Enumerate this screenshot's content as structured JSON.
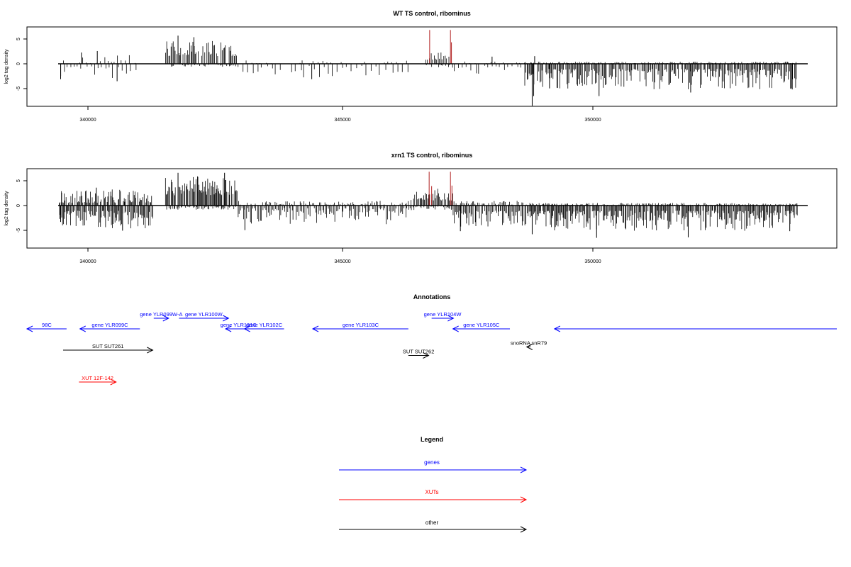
{
  "chart_data": [
    {
      "type": "bar",
      "title": "WT TS control, ribominus",
      "ylabel": "log2 tag density",
      "xlim": [
        338450,
        354800
      ],
      "ylim": [
        -8.3,
        7.2
      ],
      "xticks": [
        340000,
        345000,
        350000
      ],
      "xtick_labels": [
        "340000",
        "345000",
        "350000"
      ],
      "yticks": [
        5,
        0,
        -5
      ],
      "ytick_labels": [
        "5",
        "0",
        "-5"
      ],
      "genome_range": [
        339100,
        354000
      ],
      "highlight_color": "#b22222",
      "highlights": [
        {
          "x": 346580,
          "y": 6.6
        },
        {
          "x": 347000,
          "y": 6.6
        },
        {
          "x": 347020,
          "y": 4.2
        }
      ],
      "peaks": [
        {
          "x": 339130,
          "y": -3.0
        },
        {
          "x": 339550,
          "y": 2.2
        },
        {
          "x": 339870,
          "y": 2.5
        },
        {
          "x": 340270,
          "y": -3.4
        },
        {
          "x": 341500,
          "y": 5.5
        },
        {
          "x": 341820,
          "y": 5.2
        },
        {
          "x": 344200,
          "y": -3.0
        },
        {
          "x": 347840,
          "y": 1.4
        },
        {
          "x": 348700,
          "y": 1.5
        },
        {
          "x": 348650,
          "y": -8.2
        },
        {
          "x": 348680,
          "y": -6.3
        },
        {
          "x": 349000,
          "y": -4.8
        },
        {
          "x": 350000,
          "y": -6.3
        },
        {
          "x": 351850,
          "y": -5.6
        },
        {
          "x": 353900,
          "y": -5.0
        }
      ],
      "segments": [
        {
          "from": 339100,
          "to": 340700,
          "plus": [
            0,
            1.8
          ],
          "minus": [
            0.5,
            2.8
          ],
          "step": 70
        },
        {
          "from": 341250,
          "to": 342700,
          "plus": [
            1.5,
            4.5
          ],
          "minus": [
            0,
            0.6
          ],
          "step": 22
        },
        {
          "from": 342700,
          "to": 346200,
          "plus": [
            0,
            0.7
          ],
          "minus": [
            0.4,
            2.8
          ],
          "step": 95
        },
        {
          "from": 346500,
          "to": 347050,
          "plus": [
            0.8,
            2.2
          ],
          "minus": [
            0,
            0.9
          ],
          "step": 28
        },
        {
          "from": 347050,
          "to": 348500,
          "plus": [
            0,
            0.6
          ],
          "minus": [
            0.3,
            2.0
          ],
          "step": 85
        },
        {
          "from": 348500,
          "to": 354000,
          "plus": [
            0,
            0.4
          ],
          "minus": [
            1.0,
            5.0
          ],
          "step": 20
        }
      ]
    },
    {
      "type": "bar",
      "title": "xrn1 TS control, ribominus",
      "ylabel": "log2 tag density",
      "xlim": [
        338450,
        354800
      ],
      "ylim": [
        -8.3,
        7.2
      ],
      "xticks": [
        340000,
        345000,
        350000
      ],
      "xtick_labels": [
        "340000",
        "345000",
        "350000"
      ],
      "yticks": [
        5,
        0,
        -5
      ],
      "ytick_labels": [
        "5",
        "0",
        "-5"
      ],
      "genome_range": [
        339100,
        354000
      ],
      "highlight_color": "#b22222",
      "highlights": [
        {
          "x": 346570,
          "y": 6.6
        },
        {
          "x": 346620,
          "y": 3.8
        },
        {
          "x": 347000,
          "y": 6.6
        },
        {
          "x": 347030,
          "y": 3.9
        }
      ],
      "peaks": [
        {
          "x": 339130,
          "y": -3.2
        },
        {
          "x": 339150,
          "y": 2.5
        },
        {
          "x": 339850,
          "y": 3.5
        },
        {
          "x": 340380,
          "y": -4.9
        },
        {
          "x": 341500,
          "y": 6.4
        },
        {
          "x": 341900,
          "y": 5.6
        },
        {
          "x": 342440,
          "y": 6.4
        },
        {
          "x": 342850,
          "y": -4.8
        },
        {
          "x": 347200,
          "y": -5.0
        },
        {
          "x": 348650,
          "y": -5.6
        },
        {
          "x": 349950,
          "y": -6.3
        },
        {
          "x": 351800,
          "y": -6.2
        },
        {
          "x": 353850,
          "y": -5.0
        }
      ],
      "segments": [
        {
          "from": 339100,
          "to": 341000,
          "plus": [
            0.5,
            3.2
          ],
          "minus": [
            1.0,
            4.5
          ],
          "step": 17
        },
        {
          "from": 341250,
          "to": 342700,
          "plus": [
            2.0,
            5.8
          ],
          "minus": [
            0,
            0.8
          ],
          "step": 16
        },
        {
          "from": 342700,
          "to": 346200,
          "plus": [
            0,
            0.9
          ],
          "minus": [
            0.5,
            3.8
          ],
          "step": 28
        },
        {
          "from": 346200,
          "to": 347050,
          "plus": [
            1.0,
            3.5
          ],
          "minus": [
            0,
            0.9
          ],
          "step": 20
        },
        {
          "from": 347050,
          "to": 348500,
          "plus": [
            0,
            1.0
          ],
          "minus": [
            1.0,
            4.2
          ],
          "step": 22
        },
        {
          "from": 348500,
          "to": 354000,
          "plus": [
            0,
            0.5
          ],
          "minus": [
            1.0,
            5.0
          ],
          "step": 17
        }
      ]
    }
  ],
  "annotations": {
    "title": "Annotations",
    "xlim": [
      338450,
      354800
    ],
    "colors": {
      "gene": "#0000ff",
      "xut": "#ff0000",
      "other": "#000000"
    },
    "features": [
      {
        "label": "98C",
        "kind": "gene",
        "start": 338450,
        "end": 339250,
        "strand": "-",
        "row": 0
      },
      {
        "label": "gene YLR099C",
        "kind": "gene",
        "start": 339520,
        "end": 340730,
        "strand": "-",
        "row": 0
      },
      {
        "label": "gene YLR099W-A",
        "kind": "gene",
        "start": 341010,
        "end": 341310,
        "strand": "+",
        "row": -1
      },
      {
        "label": "gene YLR100W",
        "kind": "gene",
        "start": 341520,
        "end": 342520,
        "strand": "+",
        "row": -1
      },
      {
        "label": "gene YLR101C",
        "kind": "gene",
        "start": 342460,
        "end": 342980,
        "strand": "-",
        "row": 0
      },
      {
        "label": "gene YLR102C",
        "kind": "gene",
        "start": 342840,
        "end": 343640,
        "strand": "-",
        "row": 0
      },
      {
        "label": "gene YLR103C",
        "kind": "gene",
        "start": 344220,
        "end": 346150,
        "strand": "-",
        "row": 0
      },
      {
        "label": "gene YLR104W",
        "kind": "gene",
        "start": 346620,
        "end": 347060,
        "strand": "+",
        "row": -1
      },
      {
        "label": "gene YLR105C",
        "kind": "gene",
        "start": 347050,
        "end": 348200,
        "strand": "-",
        "row": 0
      },
      {
        "label": "",
        "kind": "gene",
        "start": 349100,
        "end": 354800,
        "strand": "-",
        "row": 0
      },
      {
        "label": "SUT SUT261",
        "kind": "other",
        "start": 339180,
        "end": 340990,
        "strand": "+",
        "row": 2
      },
      {
        "label": "SUT SUT262",
        "kind": "other",
        "start": 346150,
        "end": 346560,
        "strand": "+",
        "row": 2.5
      },
      {
        "label": "snoRNA snR79",
        "kind": "other",
        "start": 348540,
        "end": 348620,
        "strand": "-",
        "row": 1.7
      },
      {
        "label": "XUT 12F-142",
        "kind": "xut",
        "start": 339500,
        "end": 340250,
        "strand": "+",
        "row": 5
      }
    ]
  },
  "legend": {
    "title": "Legend",
    "items": [
      {
        "label": "genes",
        "color": "#0000ff"
      },
      {
        "label": "XUTs",
        "color": "#ff0000"
      },
      {
        "label": "other",
        "color": "#000000"
      }
    ]
  }
}
